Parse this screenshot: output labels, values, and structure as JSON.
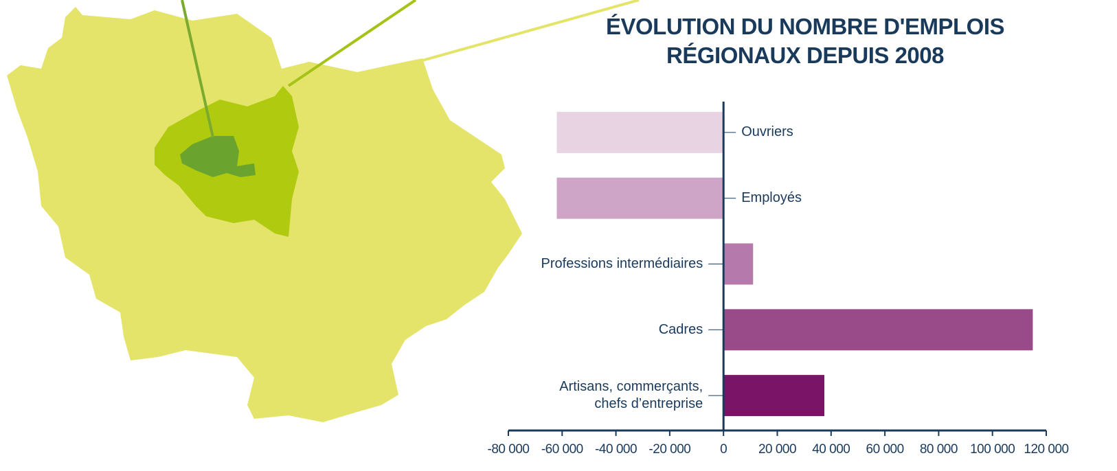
{
  "chart_data": {
    "type": "barh",
    "title": "ÉVOLUTION DU NOMBRE D'EMPLOIS\nRÉGIONAUX DEPUIS 2008",
    "categories": [
      "Ouvriers",
      "Employés",
      "Professions intermédiaires",
      "Cadres",
      "Artisans, commerçants,\nchefs d’entreprise"
    ],
    "values": [
      -62000,
      -62000,
      11000,
      115000,
      37500
    ],
    "colors": [
      "#e8d3e3",
      "#cfa5c7",
      "#b57aab",
      "#984a89",
      "#7a1466"
    ],
    "xlim": [
      -80000,
      120000
    ],
    "xticks": [
      {
        "value": -80000,
        "label": "-80 000"
      },
      {
        "value": -60000,
        "label": "-60 000"
      },
      {
        "value": -40000,
        "label": "-40 000"
      },
      {
        "value": -20000,
        "label": "-20 000"
      },
      0,
      {
        "value": 20000,
        "label": "20 000"
      },
      {
        "value": 40000,
        "label": "40 000"
      },
      {
        "value": 60000,
        "label": "60 000"
      },
      {
        "value": 80000,
        "label": "80 000"
      },
      {
        "value": 100000,
        "label": "100 000"
      },
      {
        "value": 120000,
        "label": "120 000"
      }
    ],
    "grid": false
  }
}
